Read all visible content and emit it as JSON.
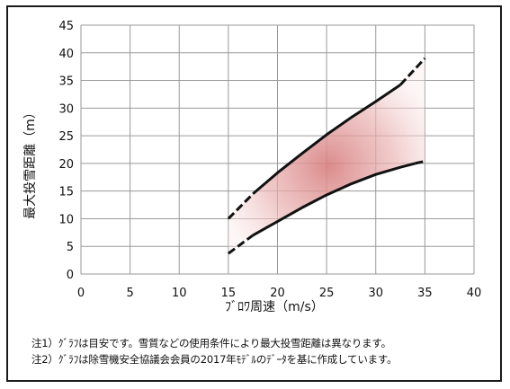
{
  "chart_data": {
    "type": "line",
    "xlabel": "ﾌﾞﾛﾜ周速（m/s）",
    "ylabel": "最大投雪距離（m）",
    "xlim": [
      0,
      40
    ],
    "ylim": [
      0,
      45
    ],
    "x_ticks": [
      0,
      5,
      10,
      15,
      20,
      25,
      30,
      35,
      40
    ],
    "y_ticks": [
      0,
      5,
      10,
      15,
      20,
      25,
      30,
      35,
      40,
      45
    ],
    "grid": true,
    "legend": "none",
    "shaded_band": {
      "color": "#d98080",
      "between": [
        "upper",
        "lower"
      ]
    },
    "series": [
      {
        "key": "upper",
        "color": "#111111",
        "solid": {
          "x": [
            17.5,
            20,
            22.5,
            25,
            27.5,
            30,
            32.5
          ],
          "y": [
            14.5,
            18.3,
            21.8,
            25.2,
            28.3,
            31.2,
            34.2
          ]
        },
        "dashed_start": {
          "x": [
            15,
            17.5
          ],
          "y": [
            10,
            14.5
          ]
        },
        "dashed_end": {
          "x": [
            32.5,
            35
          ],
          "y": [
            34.2,
            39
          ]
        }
      },
      {
        "key": "lower",
        "color": "#111111",
        "solid": {
          "x": [
            17.5,
            20,
            22.5,
            25,
            27.5,
            30,
            32.5,
            34
          ],
          "y": [
            7,
            9.5,
            12,
            14.3,
            16.3,
            18,
            19.3,
            20
          ]
        },
        "dashed_start": {
          "x": [
            15,
            17.5
          ],
          "y": [
            3.7,
            7
          ]
        },
        "dashed_end": {
          "x": [
            34,
            35
          ],
          "y": [
            20,
            20.4
          ]
        }
      }
    ]
  },
  "notes": [
    "注1）ｸﾞﾗﾌは目安です。雪質などの使用条件により最大投雪距離は異なります。",
    "注2）ｸﾞﾗﾌは除雪機安全協議会会員の2017年ﾓﾃﾞﾙのﾃﾞｰﾀを基に作成しています。"
  ]
}
